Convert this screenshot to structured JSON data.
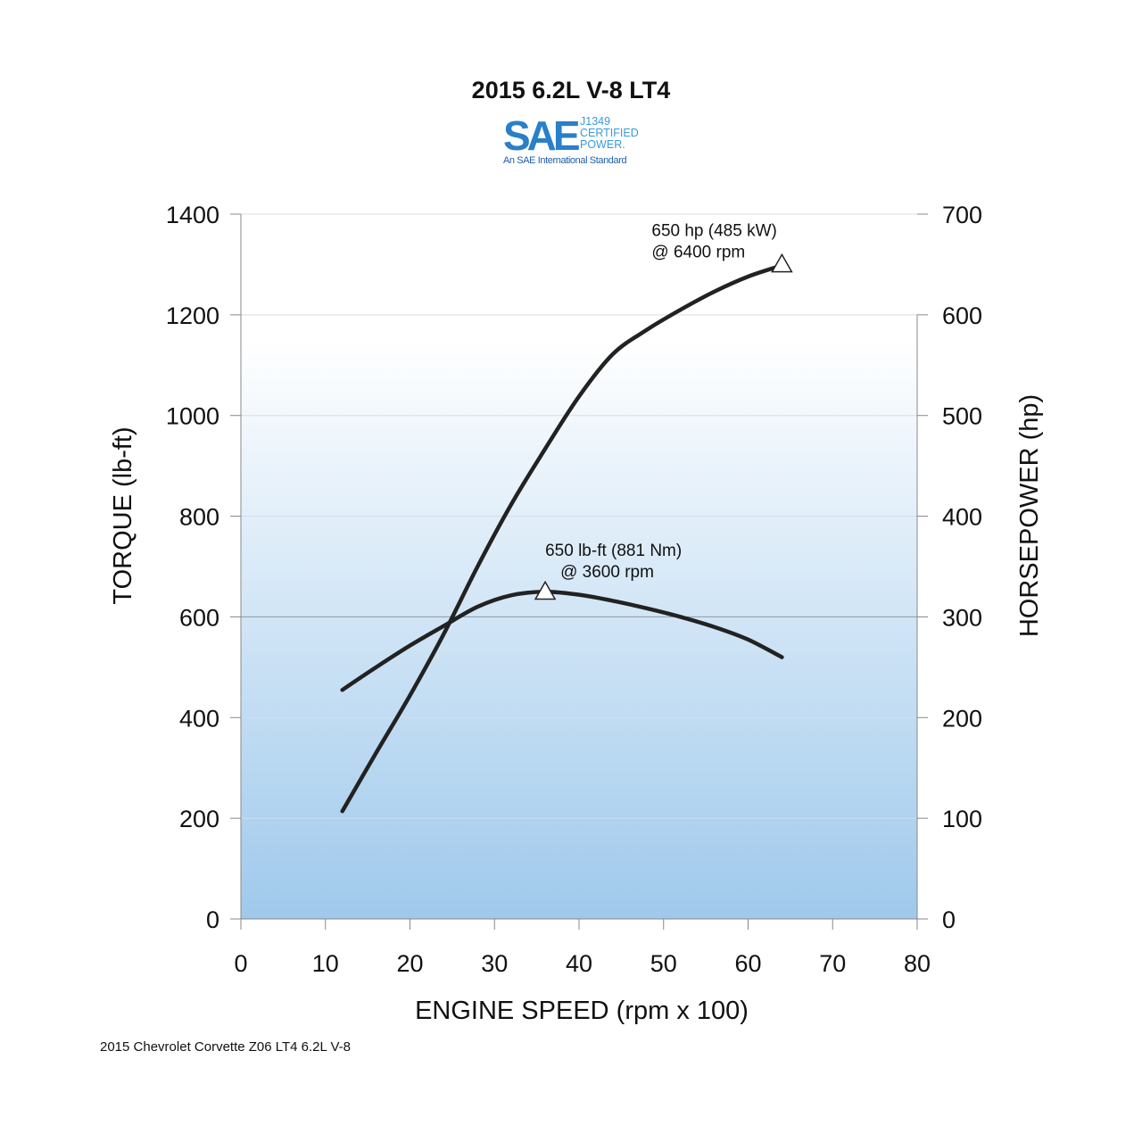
{
  "logo": {
    "mark": "SAE",
    "line1": "J1349",
    "line2": "CERTIFIED",
    "line3": "POWER.",
    "tagline": "An SAE International Standard",
    "colors": {
      "dark": "#1f5fa8",
      "light": "#3a9ad9"
    }
  },
  "footnote": "2015 Chevrolet Corvette Z06 LT4 6.2L V-8",
  "chart_data": {
    "type": "line",
    "title": "2015 6.2L V-8 LT4",
    "xlabel": "ENGINE SPEED (rpm x 100)",
    "ylabel_left": "TORQUE (lb-ft)",
    "ylabel_right": "HORSEPOWER (hp)",
    "xlim": [
      0,
      80
    ],
    "ylim_left": [
      0,
      1400
    ],
    "ylim_right": [
      0,
      700
    ],
    "x_ticks": [
      "0",
      "10",
      "20",
      "30",
      "40",
      "50",
      "60",
      "70",
      "80"
    ],
    "y_ticks_left": [
      "0",
      "200",
      "400",
      "600",
      "800",
      "1000",
      "1200",
      "1400"
    ],
    "y_ticks_right": [
      "0",
      "100",
      "200",
      "300",
      "400",
      "500",
      "600",
      "700"
    ],
    "grid": true,
    "background": {
      "top": "#ffffff",
      "bottom": "#9fc9ec"
    },
    "series": [
      {
        "axis": "right",
        "x": [
          12,
          16,
          20,
          24,
          28,
          32,
          36,
          40,
          44,
          48,
          52,
          56,
          60,
          64
        ],
        "y": [
          107,
          165,
          222,
          283,
          350,
          412,
          467,
          519,
          561,
          585,
          605,
          623,
          638,
          649
        ],
        "color": "#222222"
      },
      {
        "axis": "left",
        "x": [
          12,
          16,
          20,
          24,
          28,
          32,
          36,
          40,
          44,
          48,
          52,
          56,
          60,
          64
        ],
        "y": [
          455,
          500,
          543,
          582,
          620,
          643,
          650,
          644,
          632,
          617,
          600,
          580,
          555,
          520
        ],
        "color": "#222222"
      }
    ],
    "annotations": [
      {
        "line1": "650 hp (485 kW)",
        "line2": "@ 6400 rpm",
        "x": 64,
        "y": 650,
        "axis": "right"
      },
      {
        "line1": "650 lb-ft (881 Nm)",
        "line2": "@ 3600 rpm",
        "x": 36,
        "y": 650,
        "axis": "left"
      }
    ]
  }
}
